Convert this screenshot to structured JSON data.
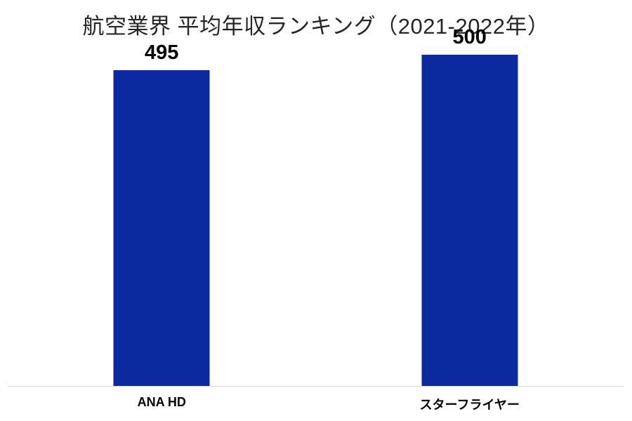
{
  "chart_data": {
    "type": "bar",
    "title": "航空業界 平均年収ランキング（2021-2022年）",
    "categories": [
      "ANA HD",
      "スターフライヤー"
    ],
    "values": [
      495,
      500
    ],
    "value_labels": [
      "495",
      "500"
    ],
    "series": [
      {
        "name": "平均年収",
        "values": [
          495,
          500
        ]
      }
    ],
    "ylim": [
      393,
      504
    ],
    "grid": false,
    "legend_position": "none",
    "y_axis_visible": false,
    "colors": {
      "bar": "#0b2aa0",
      "axis_line": "#d9d9d9",
      "title_text": "#262626",
      "label_text": "#000000",
      "background": "#ffffff"
    }
  }
}
